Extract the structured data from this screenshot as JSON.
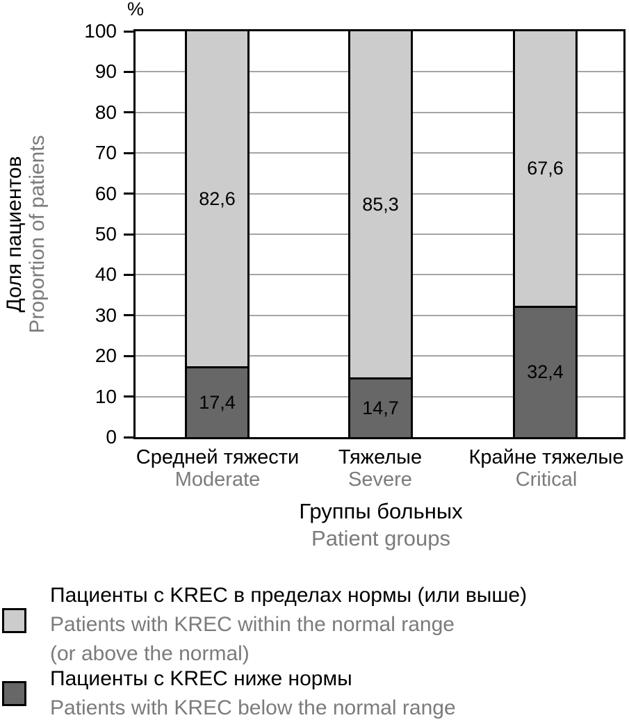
{
  "chart_data": {
    "type": "bar",
    "stacked": true,
    "unit": "%",
    "title": "",
    "categories_ru": [
      "Средней тяжести",
      "Тяжелые",
      "Крайне тяжелые"
    ],
    "categories_en": [
      "Moderate",
      "Severe",
      "Critical"
    ],
    "series": [
      {
        "name_ru": "Пациенты с KREC в пределах нормы (или выше)",
        "name_en": "Patients with KREC within the normal range (or above the normal)",
        "color": "#cccccc",
        "values": [
          82.6,
          85.3,
          67.6
        ]
      },
      {
        "name_ru": "Пациенты с KREC ниже нормы",
        "name_en": "Patients with KREC below the normal range",
        "color": "#676767",
        "values": [
          17.4,
          14.7,
          32.4
        ]
      }
    ],
    "value_labels": {
      "within": [
        "82,6",
        "85,3",
        "67,6"
      ],
      "below": [
        "17,4",
        "14,7",
        "32,4"
      ]
    },
    "ylabel_ru": "Доля пациентов",
    "ylabel_en": "Proportion of patients",
    "xlabel_ru": "Группы больных",
    "xlabel_en": "Patient groups",
    "ylim": [
      0,
      100
    ],
    "ytick_step": 10,
    "yticks": [
      "100",
      "90",
      "80",
      "70",
      "60",
      "50",
      "40",
      "30",
      "20",
      "10",
      "0"
    ],
    "percent_symbol": "%",
    "grid": true,
    "legend_position": "bottom-left"
  },
  "legend": {
    "item_within": {
      "ru": "Пациенты с KREC в пределах нормы (или выше)",
      "en_line1": "Patients with KREC within the normal range",
      "en_line2": "(or above the normal)"
    },
    "item_below": {
      "ru": "Пациенты с KREC ниже нормы",
      "en_line1": "Patients with KREC below the normal range"
    }
  },
  "colors": {
    "within_fill": "#cccccc",
    "below_fill": "#676767",
    "grid_line": "#a4a4a4",
    "axis_line": "#000000",
    "primary_text": "#000000",
    "muted_text": "#7b7b7b"
  }
}
